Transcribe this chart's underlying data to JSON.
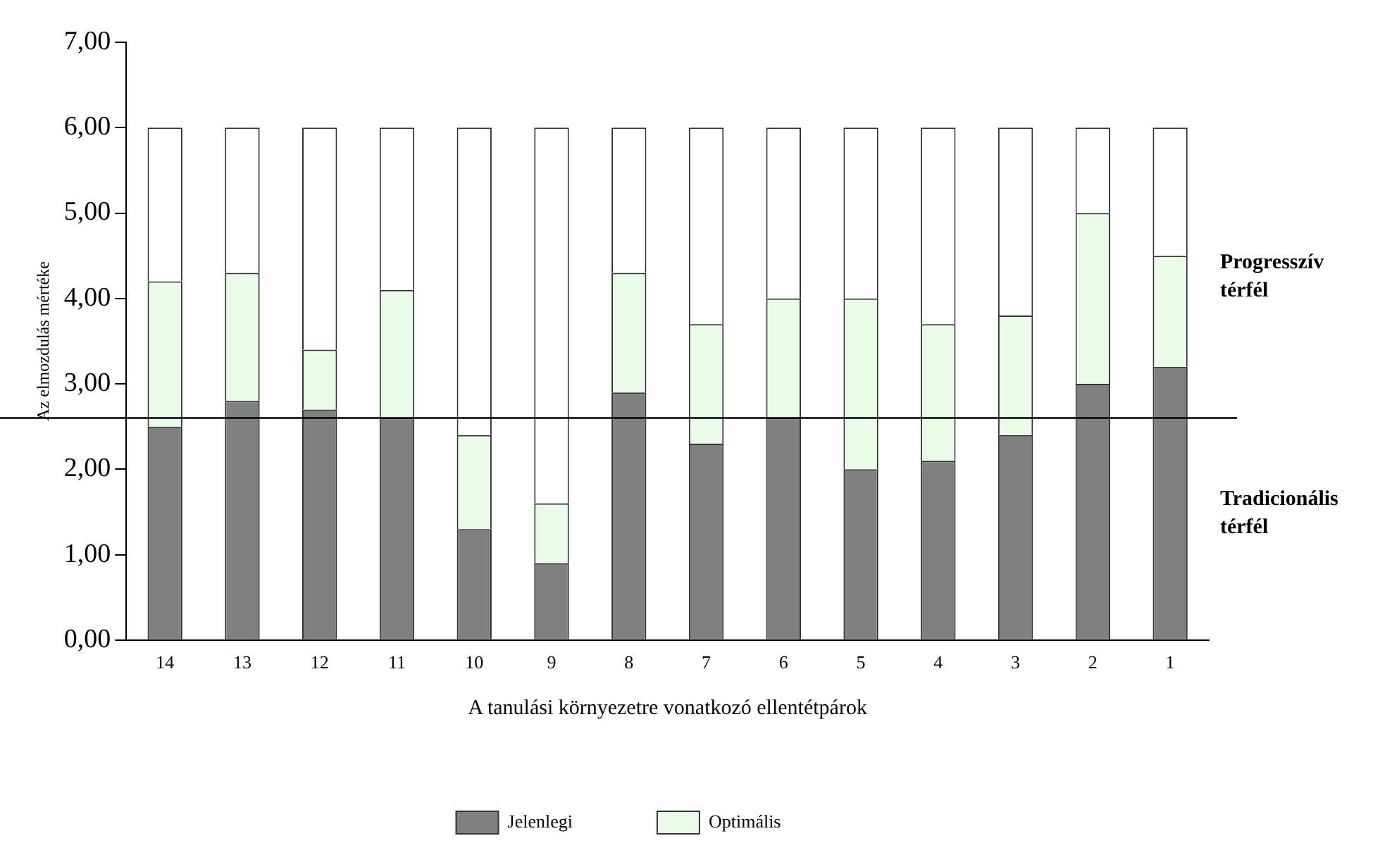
{
  "chart_data": {
    "type": "bar",
    "stacked": true,
    "xlabel": "A tanulási környezetre vonatkozó ellentétpárok",
    "ylabel": "Az elmozdulás mértéke",
    "categories": [
      "14",
      "13",
      "12",
      "11",
      "10",
      "9",
      "8",
      "7",
      "6",
      "5",
      "4",
      "3",
      "2",
      "1"
    ],
    "series": [
      {
        "name": "Jelenlegi",
        "color": "#808080",
        "values": [
          2.5,
          2.8,
          2.7,
          2.6,
          1.3,
          0.9,
          2.9,
          2.3,
          2.6,
          2.0,
          2.1,
          2.4,
          3.0,
          3.2
        ]
      },
      {
        "name": "Optimális",
        "color": "#e8fce8",
        "values": [
          1.7,
          1.5,
          0.7,
          1.5,
          1.1,
          0.7,
          1.4,
          1.4,
          1.4,
          2.0,
          1.6,
          1.4,
          2.0,
          1.3
        ]
      },
      {
        "color": "#ffffff",
        "values": [
          1.8,
          1.7,
          2.6,
          1.9,
          3.6,
          4.4,
          1.7,
          2.3,
          2.0,
          2.0,
          2.3,
          2.2,
          1.0,
          1.5
        ]
      }
    ],
    "ylim": [
      0,
      7
    ],
    "yticks": [
      {
        "value": 0,
        "label": "0,00"
      },
      {
        "value": 1,
        "label": "1,00"
      },
      {
        "value": 2,
        "label": "2,00"
      },
      {
        "value": 3,
        "label": "3,00"
      },
      {
        "value": 4,
        "label": "4,00"
      },
      {
        "value": 5,
        "label": "5,00"
      },
      {
        "value": 6,
        "label": "6,00"
      },
      {
        "value": 7,
        "label": "7,00"
      }
    ],
    "ref_lines": [
      {
        "axis": "y",
        "value": 2.6,
        "color": "#000000"
      }
    ],
    "annotations": [
      "Progresszív\ntérfél",
      "Tradicionális\ntérfél"
    ],
    "grid": false,
    "legend": "bottom"
  }
}
